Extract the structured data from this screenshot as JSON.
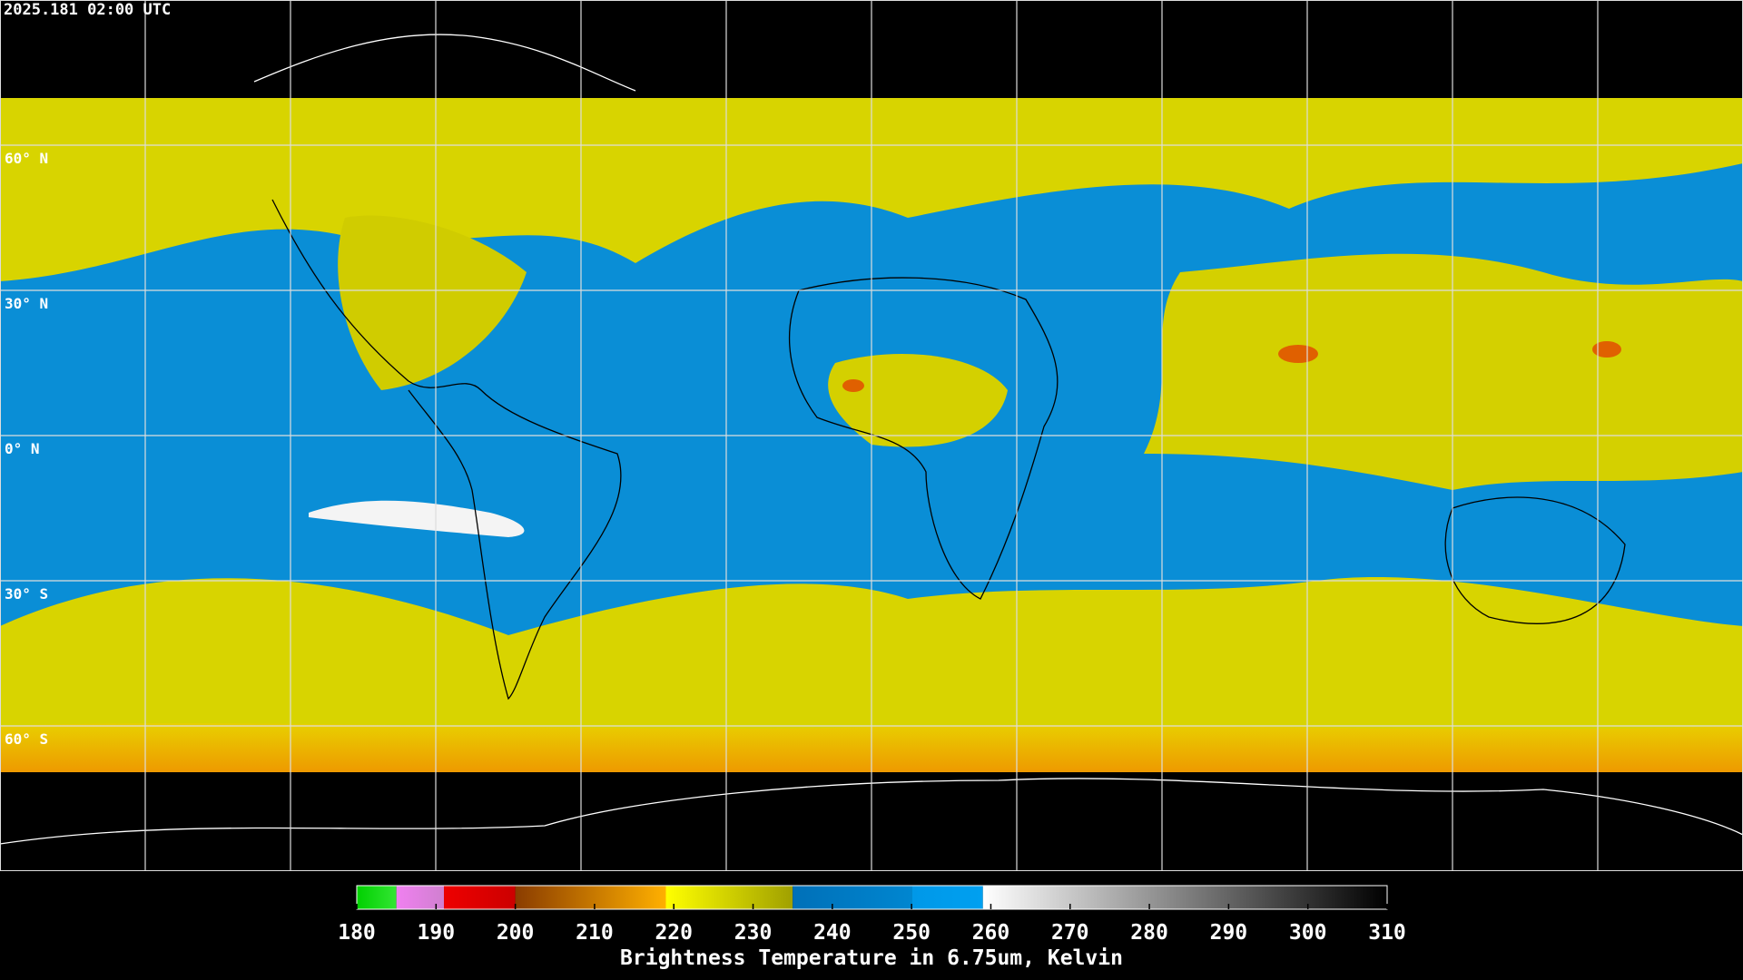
{
  "header": {
    "timestamp": "2025.181 02:00 UTC"
  },
  "grid": {
    "lat_labels": [
      "60° N",
      "30° N",
      "0° N",
      "30° S",
      "60° S"
    ]
  },
  "colorbar": {
    "range": [
      180,
      310
    ],
    "ticks": [
      180,
      190,
      200,
      210,
      220,
      230,
      240,
      250,
      260,
      270,
      280,
      290,
      300,
      310
    ],
    "segments": [
      {
        "from": 180,
        "to": 185,
        "colors": [
          "#00d000",
          "#33e633"
        ]
      },
      {
        "from": 185,
        "to": 191,
        "colors": [
          "#f080f0",
          "#d080d0"
        ]
      },
      {
        "from": 191,
        "to": 200,
        "colors": [
          "#ee0000",
          "#cc0000"
        ]
      },
      {
        "from": 200,
        "to": 219,
        "colors": [
          "#8a3c00",
          "#ffb000"
        ]
      },
      {
        "from": 219,
        "to": 235,
        "colors": [
          "#ffff00",
          "#a0a000"
        ]
      },
      {
        "from": 235,
        "to": 250,
        "colors": [
          "#0070b8",
          "#0086d0"
        ]
      },
      {
        "from": 250,
        "to": 259,
        "colors": [
          "#0098e8",
          "#00a0f0"
        ]
      },
      {
        "from": 259,
        "to": 310,
        "colors": [
          "#ffffff",
          "#000000"
        ]
      }
    ],
    "title": "Brightness Temperature in 6.75um, Kelvin"
  }
}
